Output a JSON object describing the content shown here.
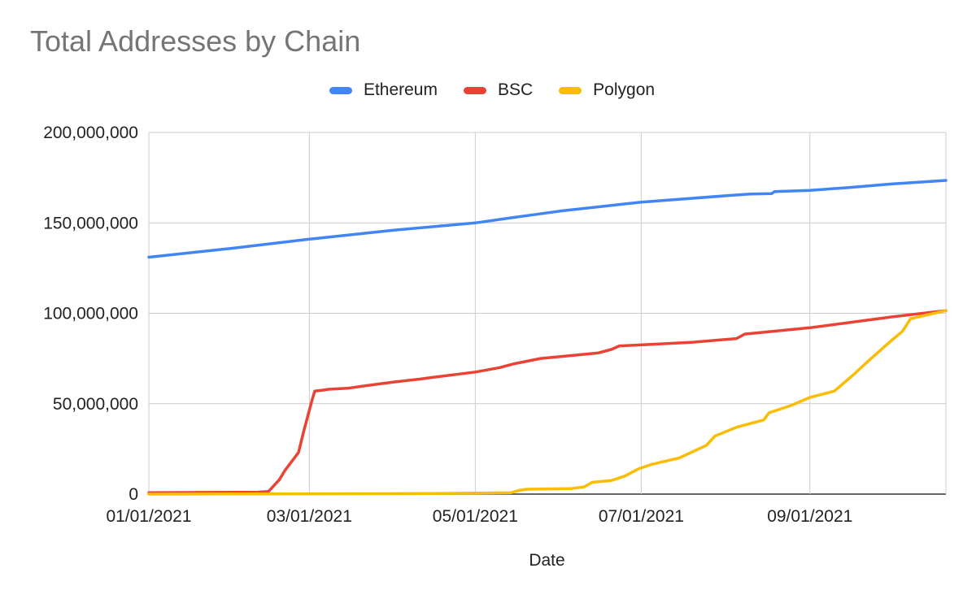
{
  "chart_data": {
    "type": "line",
    "title": "Total Addresses by Chain",
    "xlabel": "Date",
    "ylabel": "",
    "x_range": [
      "2021-01-01",
      "2021-10-21"
    ],
    "ylim": [
      0,
      200000000
    ],
    "y_ticks": [
      {
        "value": 0,
        "label": "0"
      },
      {
        "value": 50000000,
        "label": "50,000,000"
      },
      {
        "value": 100000000,
        "label": "100,000,000"
      },
      {
        "value": 150000000,
        "label": "150,000,000"
      },
      {
        "value": 200000000,
        "label": "200,000,000"
      }
    ],
    "x_ticks": [
      {
        "date": "2021-01-01",
        "label": "01/01/2021"
      },
      {
        "date": "2021-03-01",
        "label": "03/01/2021"
      },
      {
        "date": "2021-05-01",
        "label": "05/01/2021"
      },
      {
        "date": "2021-07-01",
        "label": "07/01/2021"
      },
      {
        "date": "2021-09-01",
        "label": "09/01/2021"
      }
    ],
    "grid": true,
    "legend_position": "top",
    "series": [
      {
        "name": "Ethereum",
        "color": "#4285F4",
        "points": [
          [
            "2021-01-01",
            131000000
          ],
          [
            "2021-02-01",
            136000000
          ],
          [
            "2021-03-01",
            141000000
          ],
          [
            "2021-04-01",
            146000000
          ],
          [
            "2021-05-01",
            150000000
          ],
          [
            "2021-05-15",
            153000000
          ],
          [
            "2021-06-01",
            156500000
          ],
          [
            "2021-07-01",
            161500000
          ],
          [
            "2021-08-01",
            165000000
          ],
          [
            "2021-08-10",
            166000000
          ],
          [
            "2021-08-18",
            166200000
          ],
          [
            "2021-08-19",
            167300000
          ],
          [
            "2021-09-01",
            168000000
          ],
          [
            "2021-09-15",
            169500000
          ],
          [
            "2021-10-01",
            171500000
          ],
          [
            "2021-10-21",
            173500000
          ]
        ]
      },
      {
        "name": "BSC",
        "color": "#EA4335",
        "points": [
          [
            "2021-01-01",
            800000
          ],
          [
            "2021-02-10",
            1100000
          ],
          [
            "2021-02-14",
            1500000
          ],
          [
            "2021-02-18",
            8000000
          ],
          [
            "2021-02-20",
            13000000
          ],
          [
            "2021-02-23",
            19000000
          ],
          [
            "2021-02-25",
            23000000
          ],
          [
            "2021-02-27",
            35000000
          ],
          [
            "2021-03-02",
            52000000
          ],
          [
            "2021-03-03",
            57000000
          ],
          [
            "2021-03-06",
            57500000
          ],
          [
            "2021-03-08",
            58000000
          ],
          [
            "2021-03-15",
            58500000
          ],
          [
            "2021-03-22",
            60000000
          ],
          [
            "2021-04-01",
            62000000
          ],
          [
            "2021-04-10",
            63500000
          ],
          [
            "2021-04-15",
            64500000
          ],
          [
            "2021-05-01",
            67500000
          ],
          [
            "2021-05-10",
            70000000
          ],
          [
            "2021-05-15",
            72000000
          ],
          [
            "2021-05-25",
            75000000
          ],
          [
            "2021-06-01",
            76000000
          ],
          [
            "2021-06-15",
            78000000
          ],
          [
            "2021-06-20",
            80000000
          ],
          [
            "2021-06-23",
            82000000
          ],
          [
            "2021-07-01",
            82500000
          ],
          [
            "2021-07-20",
            84000000
          ],
          [
            "2021-08-05",
            86000000
          ],
          [
            "2021-08-08",
            88500000
          ],
          [
            "2021-09-01",
            92000000
          ],
          [
            "2021-10-01",
            98000000
          ],
          [
            "2021-10-21",
            101500000
          ]
        ]
      },
      {
        "name": "Polygon",
        "color": "#FBBC04",
        "points": [
          [
            "2021-01-01",
            0
          ],
          [
            "2021-04-15",
            300000
          ],
          [
            "2021-05-14",
            700000
          ],
          [
            "2021-05-17",
            2000000
          ],
          [
            "2021-05-20",
            2700000
          ],
          [
            "2021-06-05",
            3000000
          ],
          [
            "2021-06-10",
            4000000
          ],
          [
            "2021-06-13",
            6500000
          ],
          [
            "2021-06-20",
            7500000
          ],
          [
            "2021-06-25",
            10000000
          ],
          [
            "2021-06-30",
            14000000
          ],
          [
            "2021-07-05",
            16500000
          ],
          [
            "2021-07-15",
            20000000
          ],
          [
            "2021-07-25",
            27000000
          ],
          [
            "2021-07-28",
            32000000
          ],
          [
            "2021-08-05",
            37000000
          ],
          [
            "2021-08-15",
            41000000
          ],
          [
            "2021-08-17",
            45000000
          ],
          [
            "2021-08-25",
            49000000
          ],
          [
            "2021-09-01",
            53500000
          ],
          [
            "2021-09-10",
            57000000
          ],
          [
            "2021-09-17",
            66000000
          ],
          [
            "2021-09-22",
            73000000
          ],
          [
            "2021-10-01",
            85000000
          ],
          [
            "2021-10-05",
            90000000
          ],
          [
            "2021-10-08",
            97000000
          ],
          [
            "2021-10-21",
            101500000
          ]
        ]
      }
    ]
  }
}
